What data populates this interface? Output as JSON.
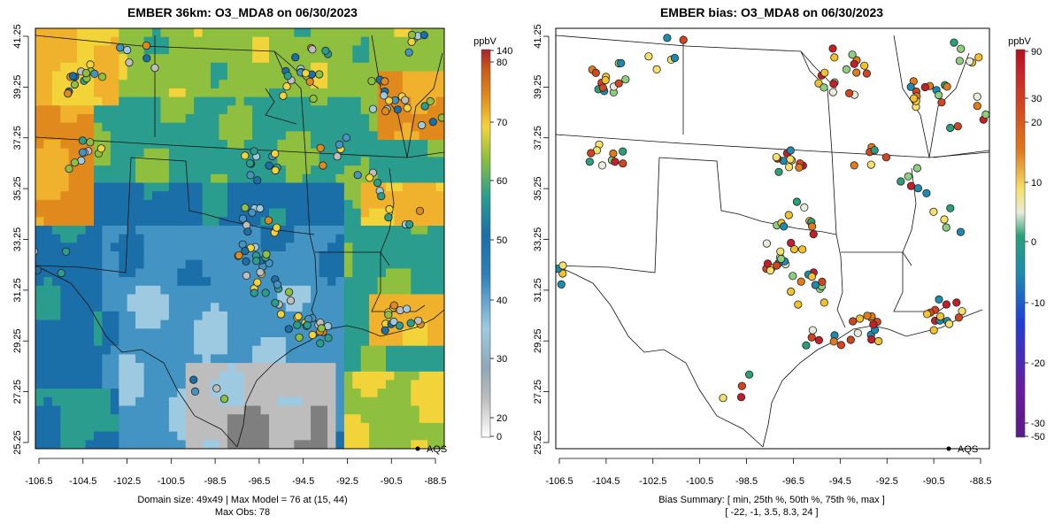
{
  "left_panel": {
    "title": "EMBER 36km: O3_MDA8 on 06/30/2023",
    "legend_label": "AQS",
    "colorbar_unit": "ppbV",
    "colorbar_ticks": [
      "140",
      "80",
      "70",
      "60",
      "50",
      "40",
      "30",
      "20",
      "0"
    ],
    "footer_line1": "Domain size: 49x49 | Max Model = 76 at (15, 44)",
    "footer_line2": "Max Obs: 78"
  },
  "right_panel": {
    "title": "EMBER bias: O3_MDA8 on 06/30/2023",
    "legend_label": "AQS",
    "colorbar_unit": "ppbV",
    "colorbar_ticks": [
      "90",
      "30",
      "20",
      "10",
      "0",
      "-10",
      "-20",
      "-30",
      "-50"
    ],
    "footer_line1": "Bias Summary: [ min, 25th %, 50th %, 75th %, max ]",
    "footer_line2": "[ -22,   -1,   3.5,   8.3,   24 ]"
  },
  "axes": {
    "x_ticks": [
      "-106.5",
      "-104.5",
      "-102.5",
      "-100.5",
      "-98.5",
      "-96.5",
      "-94.5",
      "-92.5",
      "-90.5",
      "-88.5"
    ],
    "y_ticks": [
      "41.25",
      "39.25",
      "37.25",
      "35.25",
      "33.25",
      "31.25",
      "29.25",
      "27.25",
      "25.25"
    ]
  },
  "colors": {
    "model_scale": [
      "#7f7f7f",
      "#bdbdbd",
      "#9ecae1",
      "#4393c3",
      "#1b6fa8",
      "#2a9d8f",
      "#8fbf3f",
      "#f2d43a",
      "#f0b12c",
      "#e08a1e",
      "#c75a1a",
      "#b0303c"
    ],
    "bias_scale": [
      "#6a1b9a",
      "#1f3fd6",
      "#1c8bb0",
      "#2aa07a",
      "#8ccf7e",
      "#e9ecd9",
      "#f5e06a",
      "#f2c12e",
      "#e07a1a",
      "#d2451f",
      "#c41e2a"
    ]
  }
}
